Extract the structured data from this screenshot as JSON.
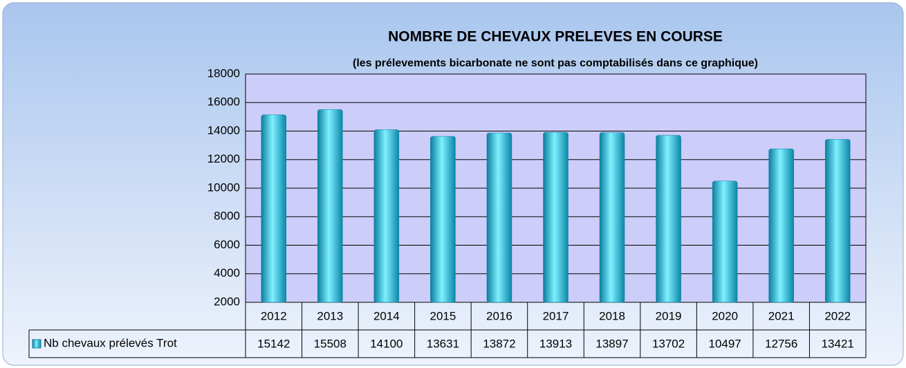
{
  "chart_data": {
    "type": "bar",
    "title": "NOMBRE DE CHEVAUX PRELEVES EN COURSE",
    "subtitle": "(les prélevements bicarbonate ne sont pas comptabilisés dans ce graphique)",
    "categories": [
      "2012",
      "2013",
      "2014",
      "2015",
      "2016",
      "2017",
      "2018",
      "2019",
      "2020",
      "2021",
      "2022"
    ],
    "series": [
      {
        "name": "Nb chevaux prélevés Trot",
        "color": "#1cc4e4",
        "values": [
          15142,
          15508,
          14100,
          13631,
          13872,
          13913,
          13897,
          13702,
          10497,
          12756,
          13421
        ]
      }
    ],
    "ylim": [
      2000,
      18000
    ],
    "yticks": [
      2000,
      4000,
      6000,
      8000,
      10000,
      12000,
      14000,
      16000,
      18000
    ],
    "grid": true
  }
}
